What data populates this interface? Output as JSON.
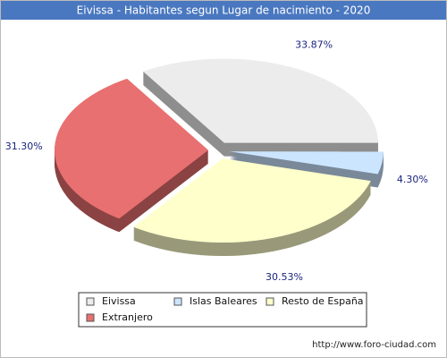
{
  "chart_data": {
    "type": "pie",
    "title": "Eivissa - Habitantes segun Lugar de nacimiento - 2020",
    "categories": [
      "Eivissa",
      "Islas Baleares",
      "Resto de España",
      "Extranjero"
    ],
    "values": [
      33.87,
      4.3,
      30.53,
      31.3
    ],
    "value_labels": [
      "33.87%",
      "4.30%",
      "30.53%",
      "31.30%"
    ],
    "colors": [
      "#ececec",
      "#cce5ff",
      "#ffffcc",
      "#e87070"
    ],
    "legend": "bottom",
    "source": "http://www.foro-ciudad.com"
  }
}
